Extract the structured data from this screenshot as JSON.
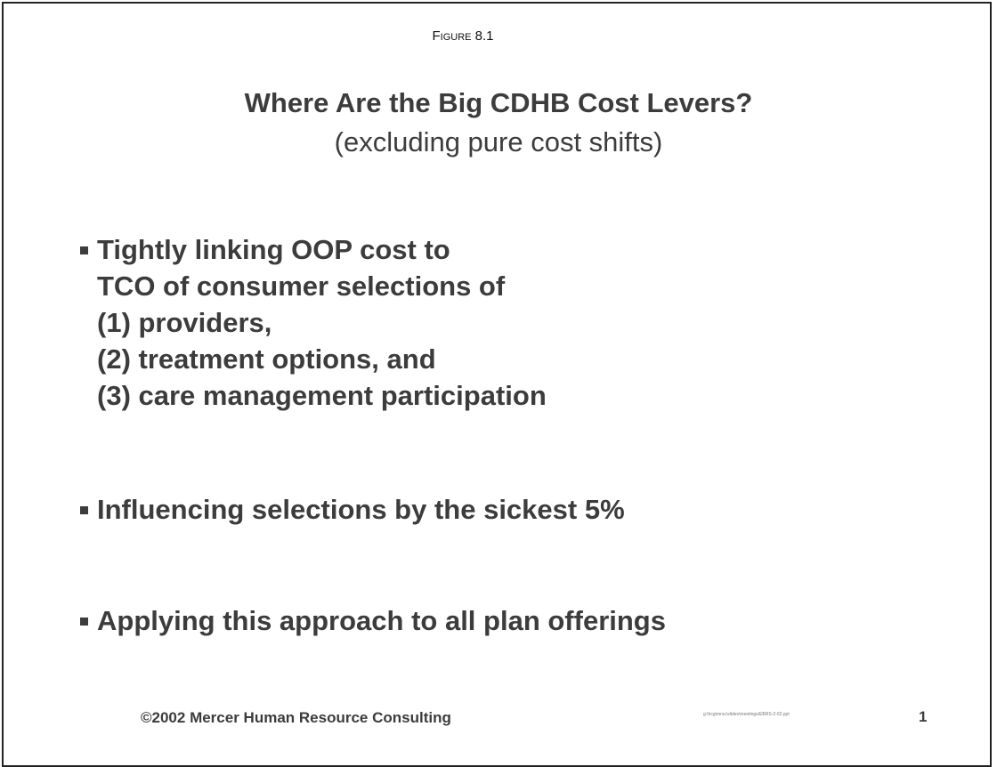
{
  "figure_label": "Figure 8.1",
  "slide": {
    "title": "Where Are the Big CDHB Cost Levers?",
    "subtitle": "(excluding pure cost shifts)",
    "bullets": [
      {
        "lines": [
          "Tightly linking OOP cost to",
          "TCO of consumer selections of",
          "(1) providers,",
          "(2) treatment options, and",
          "(3) care management participation"
        ]
      },
      {
        "lines": [
          "Influencing selections by the sickest 5%"
        ]
      },
      {
        "lines": [
          "Applying this approach to all plan offerings"
        ]
      }
    ],
    "footer": {
      "copyright": "©2002 Mercer Human Resource Consulting",
      "file_path": "g:\\hcg\\mrsc\\slides\\meetings\\EBRS-2-02.ppt",
      "page_number": "1"
    }
  }
}
